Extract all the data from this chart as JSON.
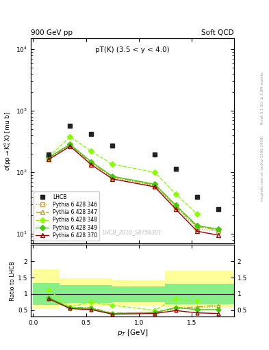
{
  "title_left": "900 GeV pp",
  "title_right": "Soft QCD",
  "annotation": "pT(K) (3.5 < y < 4.0)",
  "watermark": "LHCB_2010_S8758301",
  "right_label_top": "Rivet 3.1.10, ≥ 3.2M events",
  "right_label_bot": "mcplots.cern.ch [arXiv:1306.3436]",
  "ylabel_ratio": "Ratio to LHCB",
  "xlabel": "p_T [GeV]",
  "lhcb_x": [
    0.15,
    0.35,
    0.55,
    0.75,
    1.15,
    1.35,
    1.55,
    1.75
  ],
  "lhcb_y": [
    195,
    570,
    420,
    270,
    195,
    115,
    40,
    25
  ],
  "py346_x": [
    0.15,
    0.35,
    0.55,
    0.75,
    1.15,
    1.35,
    1.55,
    1.75
  ],
  "py346_y": [
    170,
    275,
    140,
    82,
    60,
    27,
    12,
    11
  ],
  "py347_x": [
    0.15,
    0.35,
    0.55,
    0.75,
    1.15,
    1.35,
    1.55,
    1.75
  ],
  "py347_y": [
    172,
    280,
    144,
    84,
    62,
    28,
    13,
    11.5
  ],
  "py348_x": [
    0.15,
    0.35,
    0.55,
    0.75,
    1.15,
    1.35,
    1.55,
    1.75
  ],
  "py348_y": [
    178,
    380,
    220,
    135,
    100,
    44,
    21,
    null
  ],
  "py349_x": [
    0.15,
    0.35,
    0.55,
    0.75,
    1.15,
    1.35,
    1.55,
    1.75
  ],
  "py349_y": [
    175,
    285,
    148,
    86,
    64,
    29,
    13.5,
    12
  ],
  "py370_x": [
    0.15,
    0.35,
    0.55,
    0.75,
    1.15,
    1.35,
    1.55,
    1.75
  ],
  "py370_y": [
    162,
    265,
    133,
    78,
    58,
    25,
    11,
    9.5
  ],
  "ratio346_x": [
    0.15,
    0.35,
    0.55,
    0.75,
    1.15,
    1.35,
    1.55,
    1.75
  ],
  "ratio346_y": [
    0.87,
    0.58,
    0.57,
    0.4,
    0.42,
    0.55,
    0.55,
    0.62
  ],
  "ratio347_x": [
    0.15,
    0.35,
    0.55,
    0.75,
    1.15,
    1.35,
    1.55,
    1.75
  ],
  "ratio347_y": [
    0.88,
    0.59,
    0.58,
    0.41,
    0.43,
    0.57,
    0.6,
    0.65
  ],
  "ratio348_x": [
    0.15,
    0.35,
    0.55,
    0.75,
    1.15,
    1.35,
    1.55
  ],
  "ratio348_y": [
    1.13,
    0.6,
    0.75,
    0.65,
    0.5,
    0.85,
    0.78
  ],
  "ratio349_x": [
    0.15,
    0.35,
    0.55,
    0.75,
    1.15,
    1.35,
    1.55,
    1.75
  ],
  "ratio349_y": [
    0.88,
    0.58,
    0.55,
    0.4,
    0.43,
    0.58,
    0.52,
    0.52
  ],
  "ratio370_x": [
    0.15,
    0.35,
    0.55,
    0.75,
    1.15,
    1.35,
    1.55,
    1.75
  ],
  "ratio370_y": [
    0.85,
    0.55,
    0.52,
    0.38,
    0.4,
    0.49,
    0.42,
    0.4
  ],
  "color346": "#c8a040",
  "color347": "#b8a030",
  "color348": "#88ff00",
  "color349": "#44cc00",
  "color370": "#990000",
  "color_lhcb": "#222222",
  "ylim_main": [
    7,
    15000
  ],
  "ylim_ratio": [
    0.3,
    2.5
  ],
  "xlim": [
    -0.02,
    1.9
  ]
}
